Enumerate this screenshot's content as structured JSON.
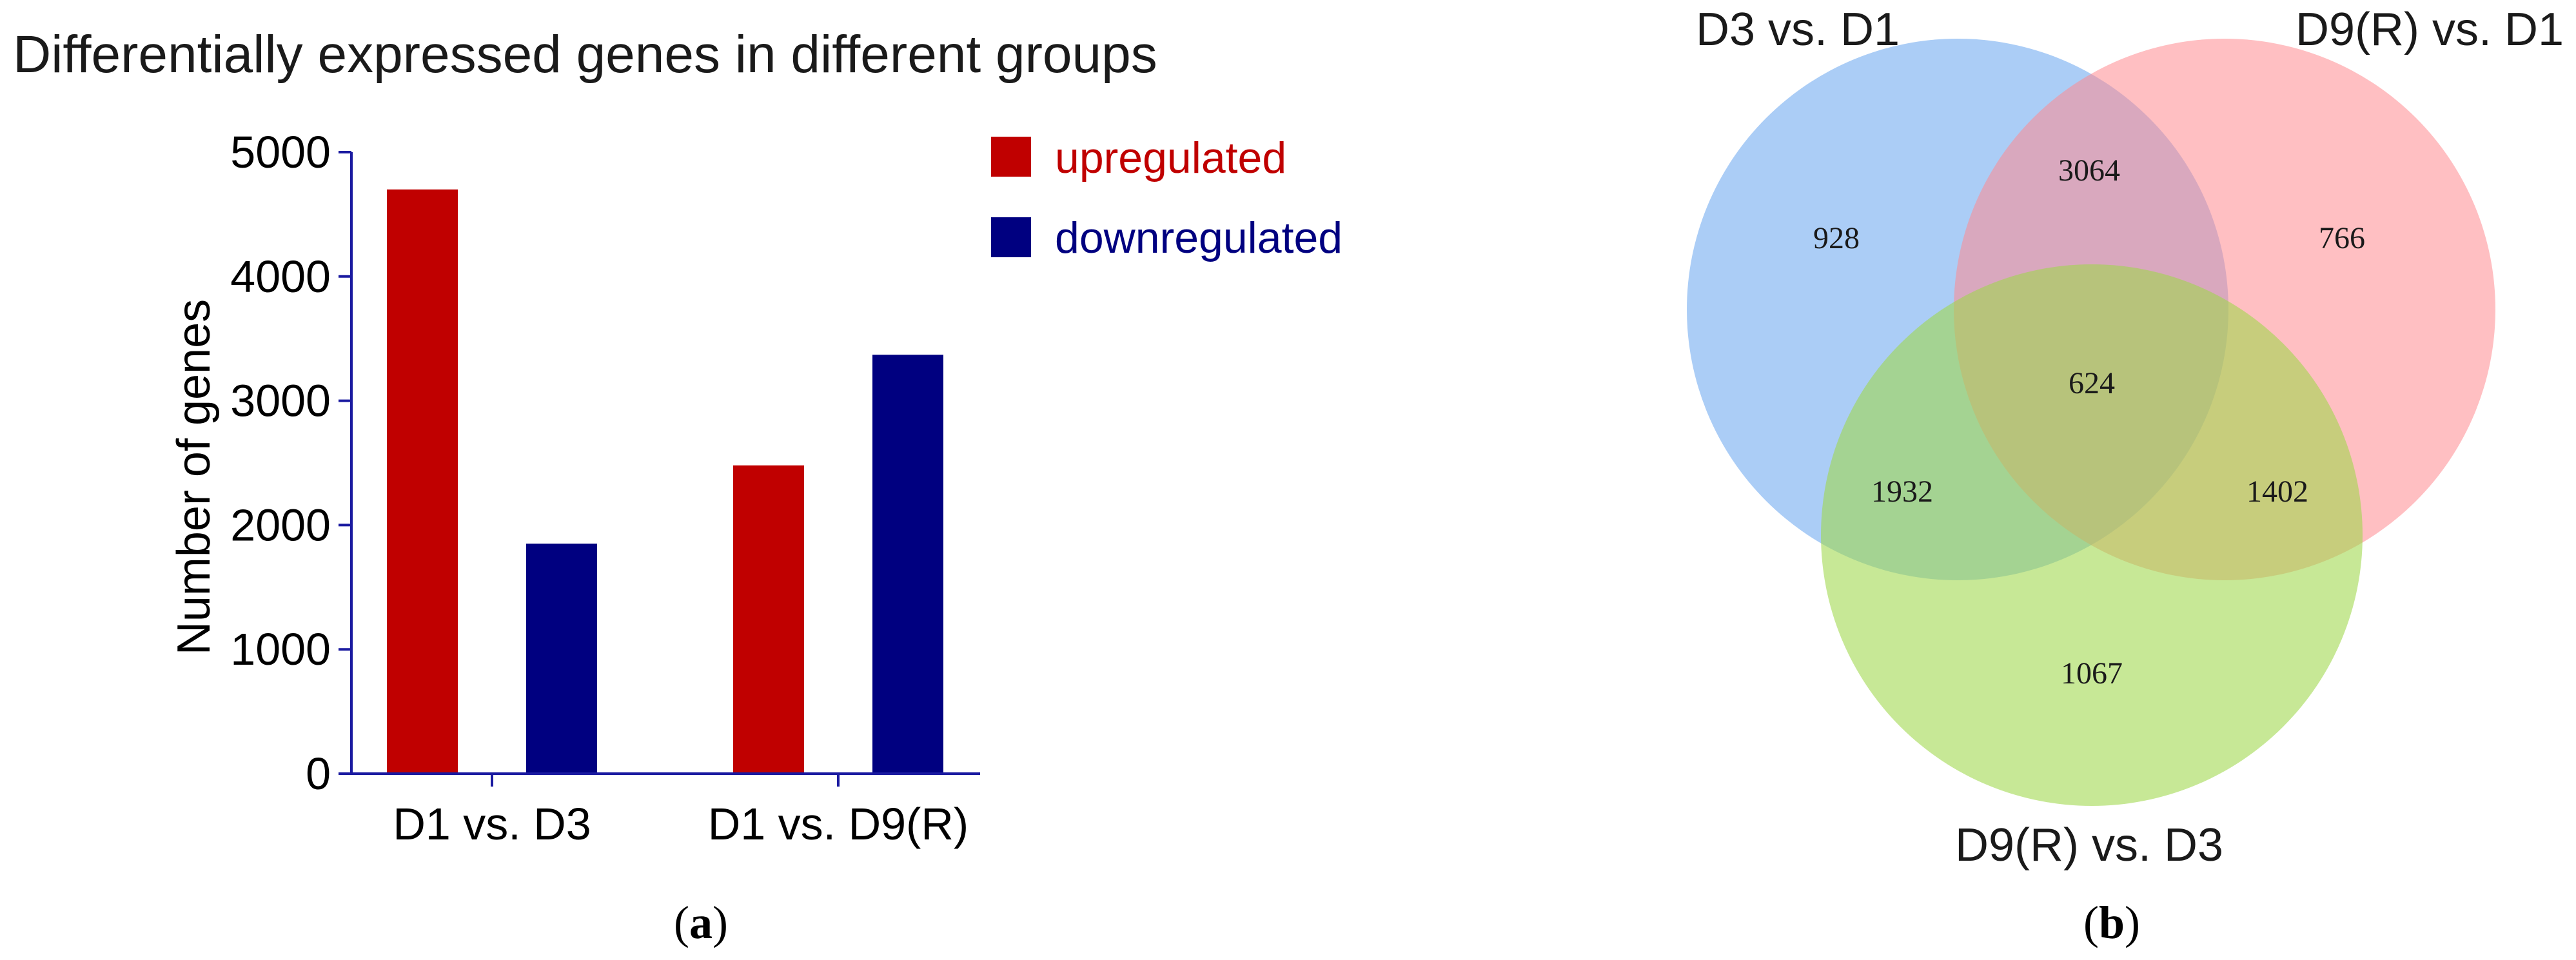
{
  "panel_a": {
    "caption_letter": "a",
    "chart_data": {
      "type": "bar",
      "title": "Differentially expressed genes in different groups",
      "xlabel": "",
      "ylabel": "Number of genes",
      "ylim": [
        0,
        5000
      ],
      "yticks": [
        "0",
        "1000",
        "2000",
        "3000",
        "4000",
        "5000"
      ],
      "categories": [
        "D1 vs. D3",
        "D1 vs. D9(R)"
      ],
      "series": [
        {
          "name": "upregulated",
          "color": "#c00000",
          "values": [
            4700,
            2480
          ]
        },
        {
          "name": "downregulated",
          "color": "#000080",
          "values": [
            1850,
            3370
          ]
        }
      ],
      "legend_placement": "top-right",
      "grid": false
    }
  },
  "panel_b": {
    "caption_letter": "b",
    "venn": {
      "sets": [
        {
          "label": "D3 vs. D1",
          "color": "#6fa8f0"
        },
        {
          "label": "D9(R) vs. D1",
          "color": "#ff8b90"
        },
        {
          "label": "D9(R) vs. D3",
          "color": "#9fd84a"
        }
      ],
      "regions": {
        "only_a": "928",
        "only_b": "766",
        "only_c": "1067",
        "a_b": "3064",
        "a_c": "1932",
        "b_c": "1402",
        "a_b_c": "624"
      }
    }
  }
}
